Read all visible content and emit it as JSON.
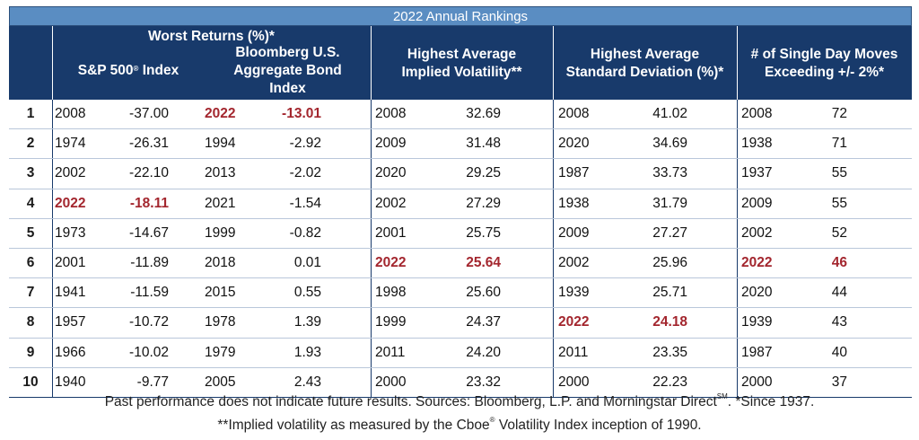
{
  "title": "2022 Annual Rankings",
  "headers": {
    "worst_returns": "Worst Returns (%)*",
    "sp500_a": "S&P 500",
    "sp500_sup": "®",
    "sp500_b": " Index",
    "bond_l1": "Bloomberg U.S.",
    "bond_l2": "Aggregate Bond",
    "bond_l3": "Index",
    "vol_l1": "Highest Average",
    "vol_l2": "Implied Volatility**",
    "std_l1": "Highest Average",
    "std_l2": "Standard Deviation (%)*",
    "moves_l1": "# of Single Day Moves",
    "moves_l2": "Exceeding +/- 2%*"
  },
  "highlight_color": "#a3262e",
  "chart_data": {
    "type": "table",
    "title": "2022 Annual Rankings",
    "ranks": [
      "1",
      "2",
      "3",
      "4",
      "5",
      "6",
      "7",
      "8",
      "9",
      "10"
    ],
    "columns": [
      {
        "name": "S&P 500 Index",
        "years": [
          "2008",
          "1974",
          "2002",
          "2022",
          "1973",
          "2001",
          "1941",
          "1957",
          "1966",
          "1940"
        ],
        "values": [
          "-37.00",
          "-26.31",
          "-22.10",
          "-18.11",
          "-14.67",
          "-11.89",
          "-11.59",
          "-10.72",
          "-10.02",
          "-9.77"
        ],
        "highlight_rank": 4
      },
      {
        "name": "Bloomberg U.S. Aggregate Bond Index",
        "years": [
          "2022",
          "1994",
          "2013",
          "2021",
          "1999",
          "2018",
          "2015",
          "1978",
          "1979",
          "2005"
        ],
        "values": [
          "-13.01",
          "-2.92",
          "-2.02",
          "-1.54",
          "-0.82",
          "0.01",
          "0.55",
          "1.39",
          "1.93",
          "2.43"
        ],
        "highlight_rank": 1
      },
      {
        "name": "Highest Average Implied Volatility**",
        "years": [
          "2008",
          "2009",
          "2020",
          "2002",
          "2001",
          "2022",
          "1998",
          "1999",
          "2011",
          "2000"
        ],
        "values": [
          "32.69",
          "31.48",
          "29.25",
          "27.29",
          "25.75",
          "25.64",
          "25.60",
          "24.37",
          "24.20",
          "23.32"
        ],
        "highlight_rank": 6
      },
      {
        "name": "Highest Average Standard Deviation (%)*",
        "years": [
          "2008",
          "2020",
          "1987",
          "1938",
          "2009",
          "2002",
          "1939",
          "2022",
          "2011",
          "2000"
        ],
        "values": [
          "41.02",
          "34.69",
          "33.73",
          "31.79",
          "27.27",
          "25.96",
          "25.71",
          "24.18",
          "23.35",
          "22.23"
        ],
        "highlight_rank": 8
      },
      {
        "name": "# of Single Day Moves Exceeding +/- 2%*",
        "years": [
          "2008",
          "1938",
          "1937",
          "2009",
          "2002",
          "2022",
          "2020",
          "1939",
          "1987",
          "2000"
        ],
        "values": [
          "72",
          "71",
          "55",
          "55",
          "52",
          "46",
          "44",
          "43",
          "40",
          "37"
        ],
        "highlight_rank": 6
      }
    ]
  },
  "footnote": {
    "line1_a": "Past performance does not indicate future results. Sources: Bloomberg, L.P. and Morningstar Direct",
    "line1_sup": "SM",
    "line1_b": ". *Since 1937.",
    "line2_a": "**Implied volatility as measured by the Cboe",
    "line2_sup": "®",
    "line2_b": " Volatility Index inception of 1990."
  }
}
